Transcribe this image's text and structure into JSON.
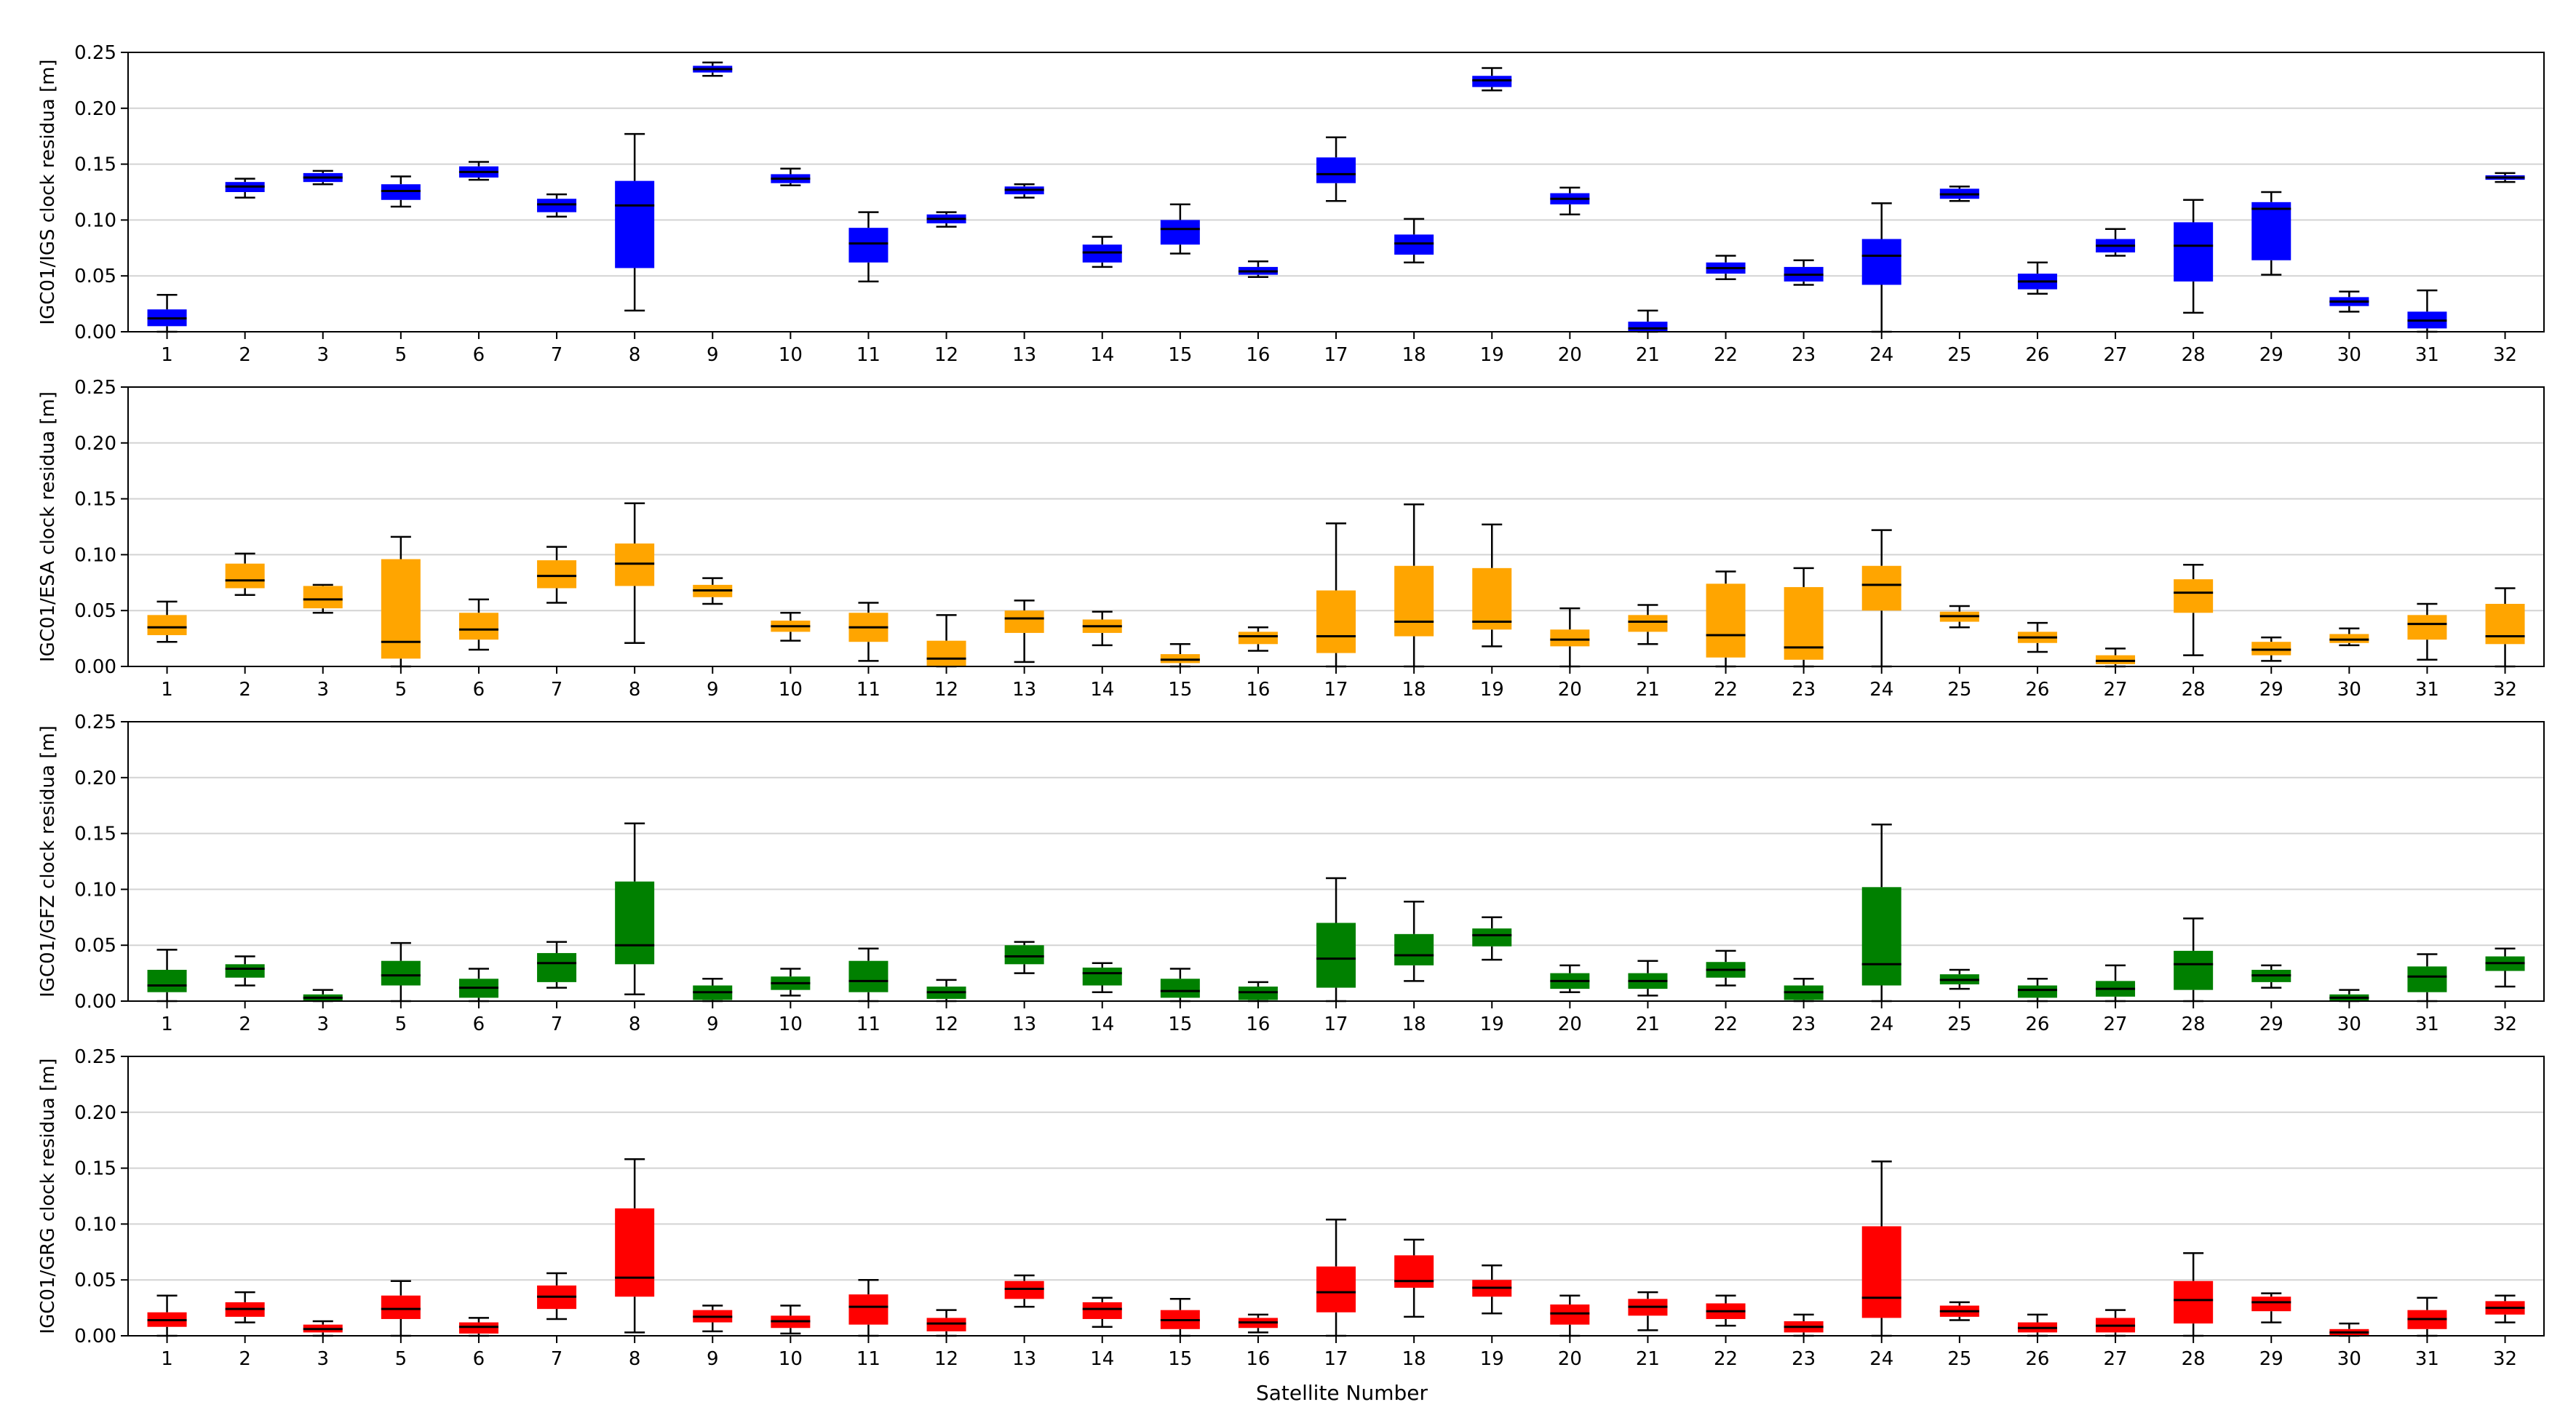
{
  "figure": {
    "xlabel": "Satellite Number"
  },
  "chart_data": [
    {
      "type": "boxplot",
      "ylabel": "IGC01/IGS clock residua [m]",
      "color": "#0000ff",
      "ylim": [
        0,
        0.25
      ],
      "yticks": [
        "0.00",
        "0.05",
        "0.10",
        "0.15",
        "0.20",
        "0.25"
      ],
      "categories": [
        "1",
        "2",
        "3",
        "5",
        "6",
        "7",
        "8",
        "9",
        "10",
        "11",
        "12",
        "13",
        "14",
        "15",
        "16",
        "17",
        "18",
        "19",
        "20",
        "21",
        "22",
        "23",
        "24",
        "25",
        "26",
        "27",
        "28",
        "29",
        "30",
        "31",
        "32"
      ],
      "boxes": [
        [
          0.0,
          0.005,
          0.012,
          0.02,
          0.033
        ],
        [
          0.12,
          0.125,
          0.13,
          0.134,
          0.137
        ],
        [
          0.132,
          0.134,
          0.138,
          0.142,
          0.144
        ],
        [
          0.112,
          0.118,
          0.126,
          0.132,
          0.139
        ],
        [
          0.136,
          0.138,
          0.143,
          0.148,
          0.152
        ],
        [
          0.103,
          0.107,
          0.114,
          0.119,
          0.123
        ],
        [
          0.019,
          0.057,
          0.113,
          0.135,
          0.177
        ],
        [
          0.229,
          0.232,
          0.235,
          0.238,
          0.241
        ],
        [
          0.131,
          0.133,
          0.137,
          0.141,
          0.146
        ],
        [
          0.045,
          0.062,
          0.079,
          0.093,
          0.107
        ],
        [
          0.094,
          0.097,
          0.101,
          0.105,
          0.107
        ],
        [
          0.12,
          0.123,
          0.127,
          0.13,
          0.132
        ],
        [
          0.058,
          0.062,
          0.071,
          0.078,
          0.085
        ],
        [
          0.07,
          0.078,
          0.092,
          0.1,
          0.114
        ],
        [
          0.049,
          0.051,
          0.054,
          0.058,
          0.063
        ],
        [
          0.117,
          0.133,
          0.141,
          0.156,
          0.174
        ],
        [
          0.062,
          0.069,
          0.079,
          0.087,
          0.101
        ],
        [
          0.216,
          0.219,
          0.225,
          0.229,
          0.236
        ],
        [
          0.105,
          0.114,
          0.119,
          0.124,
          0.129
        ],
        [
          0.0,
          0.0,
          0.003,
          0.009,
          0.019
        ],
        [
          0.047,
          0.052,
          0.057,
          0.062,
          0.068
        ],
        [
          0.042,
          0.045,
          0.051,
          0.058,
          0.064
        ],
        [
          0.0,
          0.042,
          0.068,
          0.083,
          0.115
        ],
        [
          0.117,
          0.119,
          0.123,
          0.128,
          0.13
        ],
        [
          0.034,
          0.038,
          0.045,
          0.052,
          0.062
        ],
        [
          0.068,
          0.071,
          0.077,
          0.083,
          0.092
        ],
        [
          0.017,
          0.045,
          0.077,
          0.098,
          0.118
        ],
        [
          0.051,
          0.064,
          0.11,
          0.116,
          0.125
        ],
        [
          0.018,
          0.023,
          0.027,
          0.031,
          0.036
        ],
        [
          0.0,
          0.003,
          0.01,
          0.018,
          0.037
        ],
        [
          0.134,
          0.136,
          0.138,
          0.14,
          0.142
        ]
      ]
    },
    {
      "type": "boxplot",
      "ylabel": "IGC01/ESA clock residua [m]",
      "color": "#ffa500",
      "ylim": [
        0,
        0.25
      ],
      "yticks": [
        "0.00",
        "0.05",
        "0.10",
        "0.15",
        "0.20",
        "0.25"
      ],
      "categories": [
        "1",
        "2",
        "3",
        "5",
        "6",
        "7",
        "8",
        "9",
        "10",
        "11",
        "12",
        "13",
        "14",
        "15",
        "16",
        "17",
        "18",
        "19",
        "20",
        "21",
        "22",
        "23",
        "24",
        "25",
        "26",
        "27",
        "28",
        "29",
        "30",
        "31",
        "32"
      ],
      "boxes": [
        [
          0.022,
          0.028,
          0.035,
          0.046,
          0.058
        ],
        [
          0.064,
          0.07,
          0.077,
          0.092,
          0.101
        ],
        [
          0.048,
          0.052,
          0.06,
          0.072,
          0.073
        ],
        [
          0.0,
          0.007,
          0.022,
          0.096,
          0.116
        ],
        [
          0.015,
          0.024,
          0.033,
          0.048,
          0.06
        ],
        [
          0.057,
          0.07,
          0.081,
          0.095,
          0.107
        ],
        [
          0.021,
          0.072,
          0.092,
          0.11,
          0.146
        ],
        [
          0.056,
          0.062,
          0.068,
          0.073,
          0.079
        ],
        [
          0.023,
          0.031,
          0.036,
          0.041,
          0.048
        ],
        [
          0.005,
          0.022,
          0.035,
          0.048,
          0.057
        ],
        [
          0.0,
          0.0,
          0.007,
          0.023,
          0.046
        ],
        [
          0.004,
          0.03,
          0.043,
          0.05,
          0.059
        ],
        [
          0.019,
          0.03,
          0.036,
          0.042,
          0.049
        ],
        [
          0.0,
          0.003,
          0.006,
          0.011,
          0.02
        ],
        [
          0.014,
          0.02,
          0.027,
          0.031,
          0.035
        ],
        [
          0.0,
          0.012,
          0.027,
          0.068,
          0.128
        ],
        [
          0.0,
          0.027,
          0.04,
          0.09,
          0.145
        ],
        [
          0.018,
          0.033,
          0.04,
          0.088,
          0.127
        ],
        [
          0.0,
          0.018,
          0.024,
          0.033,
          0.052
        ],
        [
          0.02,
          0.031,
          0.04,
          0.046,
          0.055
        ],
        [
          0.0,
          0.008,
          0.028,
          0.074,
          0.085
        ],
        [
          0.0,
          0.006,
          0.017,
          0.071,
          0.088
        ],
        [
          0.0,
          0.05,
          0.073,
          0.09,
          0.122
        ],
        [
          0.035,
          0.04,
          0.045,
          0.049,
          0.054
        ],
        [
          0.013,
          0.021,
          0.026,
          0.031,
          0.039
        ],
        [
          0.0,
          0.002,
          0.005,
          0.01,
          0.016
        ],
        [
          0.01,
          0.048,
          0.066,
          0.078,
          0.091
        ],
        [
          0.005,
          0.01,
          0.015,
          0.022,
          0.026
        ],
        [
          0.019,
          0.021,
          0.024,
          0.029,
          0.034
        ],
        [
          0.006,
          0.024,
          0.038,
          0.046,
          0.056
        ],
        [
          0.0,
          0.02,
          0.027,
          0.056,
          0.07
        ]
      ]
    },
    {
      "type": "boxplot",
      "ylabel": "IGC01/GFZ clock residua [m]",
      "color": "#008000",
      "ylim": [
        0,
        0.25
      ],
      "yticks": [
        "0.00",
        "0.05",
        "0.10",
        "0.15",
        "0.20",
        "0.25"
      ],
      "categories": [
        "1",
        "2",
        "3",
        "5",
        "6",
        "7",
        "8",
        "9",
        "10",
        "11",
        "12",
        "13",
        "14",
        "15",
        "16",
        "17",
        "18",
        "19",
        "20",
        "21",
        "22",
        "23",
        "24",
        "25",
        "26",
        "27",
        "28",
        "29",
        "30",
        "31",
        "32"
      ],
      "boxes": [
        [
          0.0,
          0.008,
          0.014,
          0.028,
          0.046
        ],
        [
          0.014,
          0.021,
          0.029,
          0.033,
          0.04
        ],
        [
          0.0,
          0.0,
          0.003,
          0.006,
          0.01
        ],
        [
          0.0,
          0.014,
          0.023,
          0.036,
          0.052
        ],
        [
          0.0,
          0.003,
          0.012,
          0.02,
          0.029
        ],
        [
          0.012,
          0.017,
          0.034,
          0.043,
          0.053
        ],
        [
          0.006,
          0.033,
          0.05,
          0.107,
          0.159
        ],
        [
          0.0,
          0.001,
          0.008,
          0.014,
          0.02
        ],
        [
          0.005,
          0.01,
          0.016,
          0.022,
          0.029
        ],
        [
          0.0,
          0.008,
          0.018,
          0.036,
          0.047
        ],
        [
          0.0,
          0.002,
          0.008,
          0.013,
          0.019
        ],
        [
          0.025,
          0.033,
          0.04,
          0.05,
          0.053
        ],
        [
          0.008,
          0.014,
          0.025,
          0.03,
          0.034
        ],
        [
          0.0,
          0.003,
          0.009,
          0.02,
          0.029
        ],
        [
          0.0,
          0.001,
          0.008,
          0.013,
          0.017
        ],
        [
          0.0,
          0.012,
          0.038,
          0.07,
          0.11
        ],
        [
          0.018,
          0.032,
          0.041,
          0.06,
          0.089
        ],
        [
          0.037,
          0.049,
          0.059,
          0.065,
          0.075
        ],
        [
          0.008,
          0.011,
          0.018,
          0.025,
          0.032
        ],
        [
          0.005,
          0.011,
          0.018,
          0.025,
          0.036
        ],
        [
          0.014,
          0.021,
          0.028,
          0.035,
          0.045
        ],
        [
          0.0,
          0.001,
          0.008,
          0.014,
          0.02
        ],
        [
          0.0,
          0.014,
          0.033,
          0.102,
          0.158
        ],
        [
          0.011,
          0.015,
          0.019,
          0.024,
          0.028
        ],
        [
          0.0,
          0.003,
          0.01,
          0.014,
          0.02
        ],
        [
          0.0,
          0.004,
          0.011,
          0.018,
          0.032
        ],
        [
          0.0,
          0.01,
          0.033,
          0.045,
          0.074
        ],
        [
          0.012,
          0.017,
          0.023,
          0.028,
          0.032
        ],
        [
          0.0,
          0.0,
          0.003,
          0.006,
          0.01
        ],
        [
          0.0,
          0.008,
          0.022,
          0.031,
          0.042
        ],
        [
          0.013,
          0.027,
          0.034,
          0.04,
          0.047
        ]
      ]
    },
    {
      "type": "boxplot",
      "ylabel": "IGC01/GRG clock residua [m]",
      "color": "#ff0000",
      "ylim": [
        0,
        0.25
      ],
      "yticks": [
        "0.00",
        "0.05",
        "0.10",
        "0.15",
        "0.20",
        "0.25"
      ],
      "categories": [
        "1",
        "2",
        "3",
        "5",
        "6",
        "7",
        "8",
        "9",
        "10",
        "11",
        "12",
        "13",
        "14",
        "15",
        "16",
        "17",
        "18",
        "19",
        "20",
        "21",
        "22",
        "23",
        "24",
        "25",
        "26",
        "27",
        "28",
        "29",
        "30",
        "31",
        "32"
      ],
      "boxes": [
        [
          0.0,
          0.008,
          0.014,
          0.021,
          0.036
        ],
        [
          0.012,
          0.017,
          0.024,
          0.03,
          0.039
        ],
        [
          0.0,
          0.003,
          0.006,
          0.01,
          0.013
        ],
        [
          0.0,
          0.015,
          0.024,
          0.036,
          0.049
        ],
        [
          0.0,
          0.002,
          0.008,
          0.012,
          0.016
        ],
        [
          0.015,
          0.024,
          0.035,
          0.045,
          0.056
        ],
        [
          0.003,
          0.035,
          0.052,
          0.114,
          0.158
        ],
        [
          0.004,
          0.012,
          0.017,
          0.023,
          0.027
        ],
        [
          0.002,
          0.007,
          0.013,
          0.018,
          0.027
        ],
        [
          0.0,
          0.01,
          0.026,
          0.037,
          0.05
        ],
        [
          0.0,
          0.004,
          0.011,
          0.016,
          0.023
        ],
        [
          0.026,
          0.033,
          0.042,
          0.049,
          0.054
        ],
        [
          0.008,
          0.015,
          0.024,
          0.03,
          0.034
        ],
        [
          0.0,
          0.006,
          0.014,
          0.023,
          0.033
        ],
        [
          0.003,
          0.007,
          0.012,
          0.016,
          0.019
        ],
        [
          0.0,
          0.021,
          0.039,
          0.062,
          0.104
        ],
        [
          0.017,
          0.043,
          0.049,
          0.072,
          0.086
        ],
        [
          0.02,
          0.035,
          0.043,
          0.05,
          0.063
        ],
        [
          0.0,
          0.01,
          0.02,
          0.028,
          0.036
        ],
        [
          0.005,
          0.018,
          0.026,
          0.033,
          0.039
        ],
        [
          0.009,
          0.015,
          0.022,
          0.029,
          0.036
        ],
        [
          0.0,
          0.003,
          0.008,
          0.013,
          0.019
        ],
        [
          0.0,
          0.016,
          0.034,
          0.098,
          0.156
        ],
        [
          0.014,
          0.017,
          0.022,
          0.027,
          0.03
        ],
        [
          0.0,
          0.003,
          0.007,
          0.012,
          0.019
        ],
        [
          0.0,
          0.003,
          0.009,
          0.016,
          0.023
        ],
        [
          0.0,
          0.011,
          0.032,
          0.049,
          0.074
        ],
        [
          0.012,
          0.022,
          0.03,
          0.035,
          0.038
        ],
        [
          0.0,
          0.0,
          0.003,
          0.006,
          0.011
        ],
        [
          0.0,
          0.006,
          0.015,
          0.023,
          0.034
        ],
        [
          0.012,
          0.019,
          0.025,
          0.031,
          0.036
        ]
      ]
    }
  ]
}
